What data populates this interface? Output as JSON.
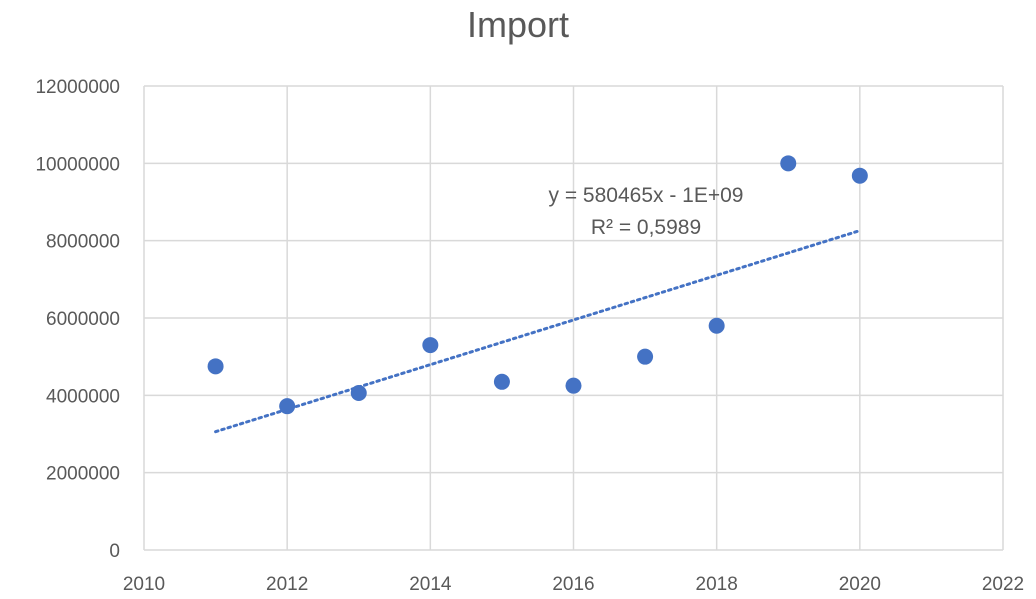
{
  "chart_data": {
    "type": "scatter",
    "title": "Import",
    "xlabel": "",
    "ylabel": "",
    "xlim": [
      2010,
      2022
    ],
    "ylim": [
      0,
      12000000
    ],
    "x_ticks": [
      2010,
      2012,
      2014,
      2016,
      2018,
      2020,
      2022
    ],
    "y_ticks": [
      0,
      2000000,
      4000000,
      6000000,
      8000000,
      10000000,
      12000000
    ],
    "y_tick_labels": [
      "0",
      "2000000",
      "4000000",
      "6000000",
      "8000000",
      "10000000",
      "12000000"
    ],
    "grid": true,
    "legend": "none",
    "marker_color": "#4472C4",
    "series": [
      {
        "x": [
          2011,
          2012,
          2013,
          2014,
          2015,
          2016,
          2017,
          2018,
          2019,
          2020
        ],
        "y": [
          4750000,
          3720000,
          4060000,
          5300000,
          4350000,
          4250000,
          5000000,
          5800000,
          10000000,
          9680000
        ]
      }
    ],
    "trendline": {
      "type": "linear",
      "style": "dotted",
      "color": "#4472C4",
      "x_range": [
        2011,
        2020
      ],
      "y_start": 3060000,
      "y_end": 8260000,
      "equation": "y = 580465x - 1E+09",
      "r_squared": "R² = 0,5989"
    }
  }
}
